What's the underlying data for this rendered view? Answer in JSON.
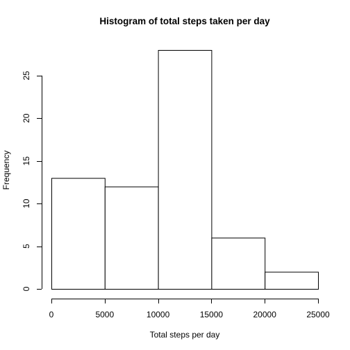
{
  "chart_data": {
    "type": "bar",
    "title": "Histogram of total steps taken per day",
    "xlabel": "Total steps per day",
    "ylabel": "Frequency",
    "bins": [
      {
        "from": 0,
        "to": 5000,
        "count": 13
      },
      {
        "from": 5000,
        "to": 10000,
        "count": 12
      },
      {
        "from": 10000,
        "to": 15000,
        "count": 28
      },
      {
        "from": 15000,
        "to": 20000,
        "count": 6
      },
      {
        "from": 20000,
        "to": 25000,
        "count": 2
      }
    ],
    "xlim": [
      0,
      25000
    ],
    "ylim": [
      0,
      28
    ],
    "xticks": [
      0,
      5000,
      10000,
      15000,
      20000,
      25000
    ],
    "yticks": [
      0,
      5,
      10,
      15,
      20,
      25
    ],
    "grid": false,
    "bar_fill": "#ffffff",
    "bar_stroke": "#000000"
  }
}
